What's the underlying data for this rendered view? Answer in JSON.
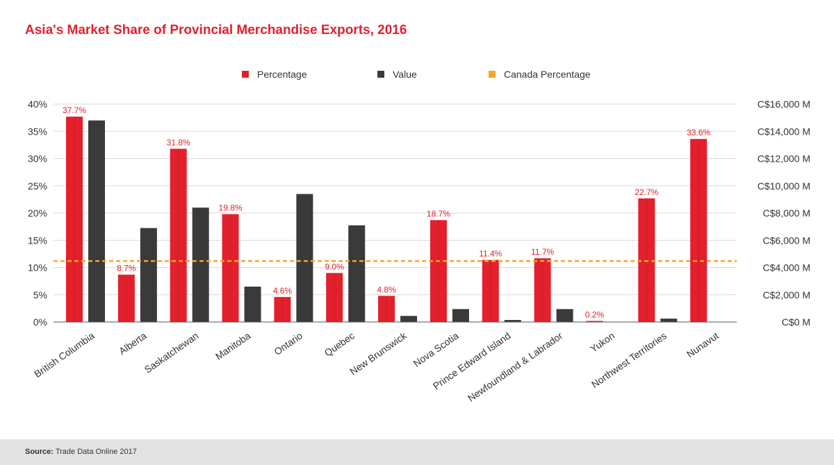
{
  "title": "Asia's Market Share of Provincial Merchandise Exports, 2016",
  "legend": [
    {
      "label": "Percentage",
      "color": "#e4202c"
    },
    {
      "label": "Value",
      "color": "#3a3a3a"
    },
    {
      "label": "Canada Percentage",
      "color": "#f5a623"
    }
  ],
  "footer": {
    "source_label": "Source:",
    "source_text": "Trade Data Online 2017"
  },
  "chart_data": {
    "type": "bar",
    "title": "Asia's Market Share of Provincial Merchandise Exports, 2016",
    "categories": [
      "British Columbia",
      "Alberta",
      "Saskatchewan",
      "Manitoba",
      "Ontario",
      "Quebec",
      "New Brunswick",
      "Nova Scotia",
      "Prince Edward Island",
      "Newfoundland & Labrador",
      "Yukon",
      "Northwest Territories",
      "Nunavut"
    ],
    "series": [
      {
        "name": "Percentage",
        "axis": "left",
        "color": "#e4202c",
        "unit": "%",
        "values": [
          37.7,
          8.7,
          31.8,
          19.8,
          4.6,
          9.0,
          4.8,
          18.7,
          11.4,
          11.7,
          0.2,
          22.7,
          33.6
        ],
        "labels": [
          "37.7%",
          "8.7%",
          "31.8%",
          "19.8%",
          "4.6%",
          "9.0%",
          "4.8%",
          "18.7%",
          "11.4%",
          "11.7%",
          "0.2%",
          "22.7%",
          "33.6%"
        ]
      },
      {
        "name": "Value",
        "axis": "right",
        "color": "#3a3a3a",
        "unit": "C$ M",
        "values": [
          14800,
          6900,
          8400,
          2600,
          9400,
          7100,
          450,
          950,
          150,
          950,
          0,
          250,
          0
        ]
      }
    ],
    "reference_line": {
      "name": "Canada Percentage",
      "value": 11.2,
      "color": "#f5a623",
      "style": "dashed"
    },
    "y_left": {
      "ylim": [
        0,
        40
      ],
      "ticks": [
        "0%",
        "5%",
        "10%",
        "15%",
        "20%",
        "25%",
        "30%",
        "35%",
        "40%"
      ]
    },
    "y_right": {
      "ylim": [
        0,
        16000
      ],
      "ticks": [
        "C$0 M",
        "C$2,000 M",
        "C$4,000 M",
        "C$6,000 M",
        "C$8,000 M",
        "C$10,000 M",
        "C$12,000 M",
        "C$14,000 M",
        "C$16,000 M"
      ]
    },
    "xlabel": "",
    "ylabel": "",
    "grid": true,
    "legend_position": "top"
  }
}
